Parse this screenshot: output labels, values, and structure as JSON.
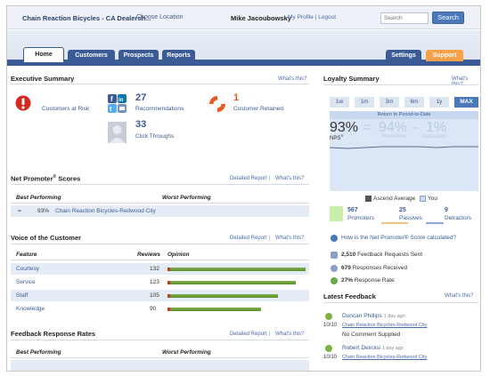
{
  "header": {
    "brand": "Chain Reaction Bicycles - CA Dealersh...",
    "choose_location": "Choose Location",
    "user_name": "Mike Jacoubowsky",
    "user_links": "My Profile | Logout",
    "search_placeholder": "Search",
    "search_button": "Search"
  },
  "nav": {
    "tabs": [
      {
        "label": "Home"
      },
      {
        "label": "Customers"
      },
      {
        "label": "Prospects"
      },
      {
        "label": "Reports"
      }
    ],
    "settings": "Settings",
    "support": "Support"
  },
  "executive_summary": {
    "title": "Executive Summary",
    "whats_this": "What's this?",
    "items": [
      {
        "value": "",
        "label": "Customers at Risk"
      },
      {
        "value": "27",
        "label": "Recommendations"
      },
      {
        "value": "1",
        "label": "Customer Retained"
      },
      {
        "value": "33",
        "label": "Click Throughs"
      }
    ]
  },
  "nps": {
    "title": "Net Promoter",
    "title_sup": "®",
    "title_suffix": " Scores",
    "detailed_report": "Detailed Report",
    "sep": "|",
    "whats_this": "What's this?",
    "col_best": "Best Performing",
    "col_worst": "Worst Performing",
    "row": {
      "symbol": "=",
      "value": "93%",
      "name": "Chain Reaction Bicycles-Redwood City"
    }
  },
  "voice": {
    "title": "Voice of the Customer",
    "detailed_report": "Detailed Report",
    "sep": "|",
    "whats_this": "What's this?",
    "col_feature": "Feature",
    "col_reviews": "Reviews",
    "col_opinion": "Opinion",
    "rows": [
      {
        "feature": "Courtesy",
        "reviews": "132",
        "opinion_fraction": 1.0
      },
      {
        "feature": "Service",
        "reviews": "123",
        "opinion_fraction": 0.93
      },
      {
        "feature": "Staff",
        "reviews": "105",
        "opinion_fraction": 0.8
      },
      {
        "feature": "Knowledge",
        "reviews": "90",
        "opinion_fraction": 0.68
      }
    ]
  },
  "feedback_rates": {
    "title": "Feedback Response Rates",
    "detailed_report": "Detailed Report",
    "sep": "|",
    "whats_this": "What's this?",
    "col_best": "Best Performing",
    "col_worst": "Worst Performing"
  },
  "loyalty": {
    "title": "Loyalty Summary",
    "whats_this": "What's this?",
    "ranges": [
      "1w",
      "1m",
      "3m",
      "6m",
      "1y",
      "MAX"
    ],
    "active_range": "MAX",
    "return_label": "Return to Period-to-Date",
    "nps_value": "93%",
    "nps_label": "NPS",
    "nps_sup": "®",
    "equals": "=",
    "promoters_value": "94%",
    "promoters_label": "Promoters",
    "minus": "-",
    "detractors_value": "1%",
    "detractors_label": "Detractors",
    "legend_ascend": "Ascend Average",
    "legend_you": "You",
    "promoters_count": "567",
    "promoters_text": "Promoters",
    "passives_count": "25",
    "passives_text": "Passives",
    "detractors_count": "9",
    "detractors_text": "Detractors",
    "how_calc": "How is the Net Promoter® Score calculated?",
    "requests_num": "2,510",
    "requests_lab": "Feedback Requests Sent",
    "received_num": "679",
    "received_lab": "Responses Received",
    "rate_num": "27%",
    "rate_lab": "Response Rate",
    "colors": {
      "promoter": "#c9f0a8",
      "passive": "#f5c08a",
      "detractor": "#8aa8e0",
      "accent": "#4a78b9"
    }
  },
  "latest_feedback": {
    "title": "Latest Feedback",
    "whats_this": "What's this?",
    "items": [
      {
        "name": "Duncan Phillips",
        "time": "1 day ago",
        "score": "10/10",
        "location": "Chain Reaction Bicycles-Redwood City",
        "note": "No Comment Supplied"
      },
      {
        "name": "Robert Deiroisi",
        "time": "1 day ago",
        "score": "10/10",
        "location": "Chain Reaction Bicycles-Redwood City",
        "note": ""
      }
    ]
  }
}
